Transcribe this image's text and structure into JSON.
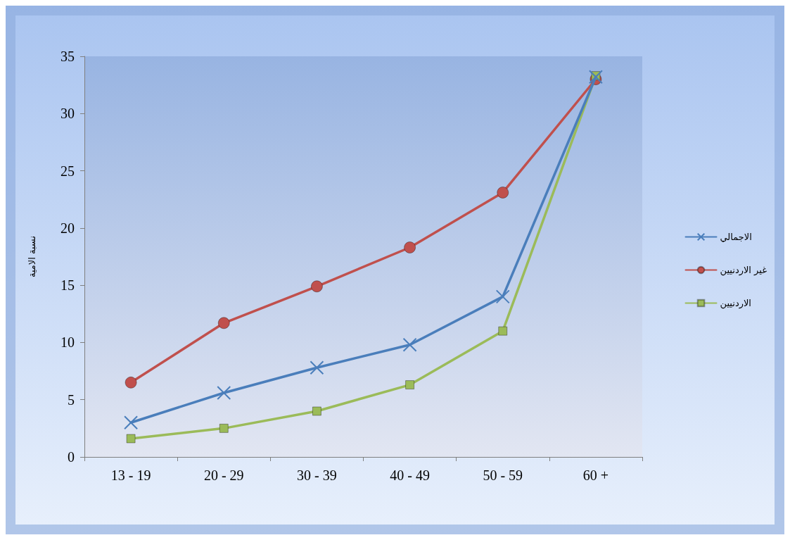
{
  "chart_data": {
    "type": "line",
    "ylabel": "نسبة الامية",
    "categories": [
      "13 - 19",
      "20 - 29",
      "30 - 39",
      "40 - 49",
      "50 - 59",
      "60 +"
    ],
    "ylim": [
      0,
      35
    ],
    "yticks": [
      0,
      5,
      10,
      15,
      20,
      25,
      30,
      35
    ],
    "grid": false,
    "legend": "right",
    "series": [
      {
        "name": "الاجمالي",
        "color": "#4a7ebb",
        "marker": "cross",
        "values": [
          3.0,
          5.6,
          7.8,
          9.8,
          14.0,
          33.2
        ]
      },
      {
        "name": "غير الاردنيين",
        "color": "#c0504d",
        "marker": "circle",
        "values": [
          6.5,
          11.7,
          14.9,
          18.3,
          23.1,
          33.0
        ]
      },
      {
        "name": "الاردنيين",
        "color": "#9bbb59",
        "marker": "square",
        "values": [
          1.6,
          2.5,
          4.0,
          6.3,
          11.0,
          33.3
        ]
      }
    ]
  }
}
